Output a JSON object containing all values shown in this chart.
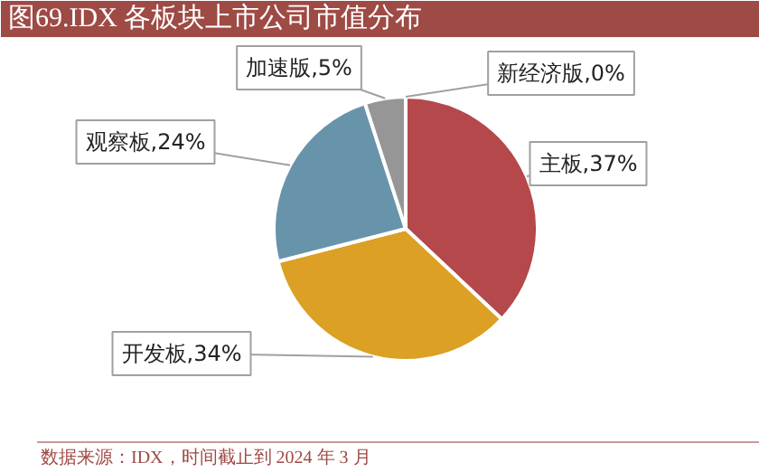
{
  "chart_data": {
    "type": "pie",
    "title": "图69.IDX 各板块上市公司市值分布",
    "categories": [
      "主板",
      "开发板",
      "观察板",
      "加速版",
      "新经济版"
    ],
    "values": [
      37,
      34,
      24,
      5,
      0
    ],
    "value_labels": [
      ",37%",
      ",34%",
      ",24%",
      ",5%",
      ",0%"
    ],
    "colors": [
      "#b4484a",
      "#dba024",
      "#6894ab",
      "#969696",
      "#8a8a8a"
    ],
    "annotations": [
      "数据来源：IDX，时间截止到 2024 年 3 月"
    ]
  }
}
